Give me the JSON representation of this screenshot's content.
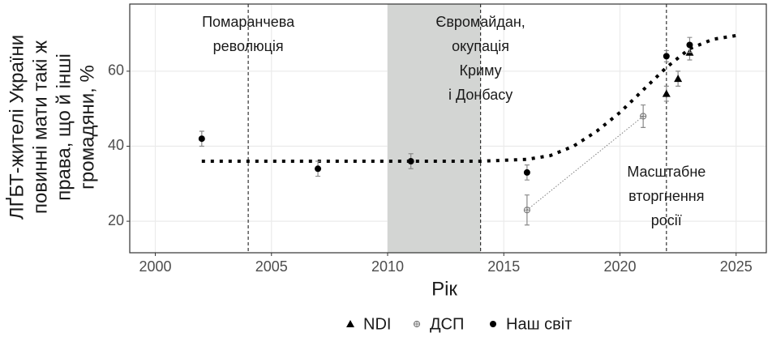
{
  "chart_data": {
    "type": "scatter",
    "x_label": "Рік",
    "y_label": [
      "ЛҐБТ-жителі України",
      "повинні мати такі ж",
      "права, що й інші",
      "громадяни, %"
    ],
    "xlim": [
      1998.9,
      2026.3
    ],
    "ylim": [
      11.6,
      77.9
    ],
    "xticks": [
      2000,
      2005,
      2010,
      2015,
      2020,
      2025
    ],
    "yticks": [
      20,
      40,
      60
    ],
    "grid": true,
    "legend": "bottom",
    "shade": [
      2010,
      2014
    ],
    "events": [
      {
        "x": 2004,
        "label": [
          "Помаранчева",
          "революція"
        ]
      },
      {
        "x": 2014,
        "label": [
          "Євромайдан,",
          "окупація",
          "Криму",
          "і Донбасу"
        ]
      },
      {
        "x": 2022,
        "label": [
          "Масштабне",
          "вторгнення",
          "росії"
        ]
      }
    ],
    "trend": {
      "color": "#000000",
      "x": [
        2002,
        2004,
        2006,
        2008,
        2010,
        2012,
        2014,
        2016,
        2017,
        2018,
        2019,
        2020,
        2021,
        2022,
        2023,
        2024,
        2025
      ],
      "values": [
        36,
        36,
        36,
        36,
        36,
        36,
        36,
        36.5,
        37.5,
        40,
        44,
        49,
        55,
        61,
        66,
        68.5,
        69.5
      ]
    },
    "series": [
      {
        "name": "NDI",
        "color": "#000000",
        "marker": "triangle",
        "x": [
          2022,
          2022.5,
          2023
        ],
        "values": [
          54,
          58,
          65
        ],
        "errors": [
          2,
          2,
          2
        ]
      },
      {
        "name": "ДСП",
        "color": "#7f7f7f",
        "marker": "circle-cross",
        "line": true,
        "x": [
          2016,
          2021
        ],
        "values": [
          23,
          48
        ],
        "errors": [
          4,
          3
        ]
      },
      {
        "name": "Наш світ",
        "color": "#000000",
        "marker": "circle",
        "x": [
          2002,
          2007,
          2011,
          2016,
          2022,
          2023
        ],
        "values": [
          42,
          34,
          36,
          33,
          64,
          67
        ],
        "errors": [
          2,
          2,
          2,
          2,
          1.5,
          2
        ]
      }
    ]
  }
}
